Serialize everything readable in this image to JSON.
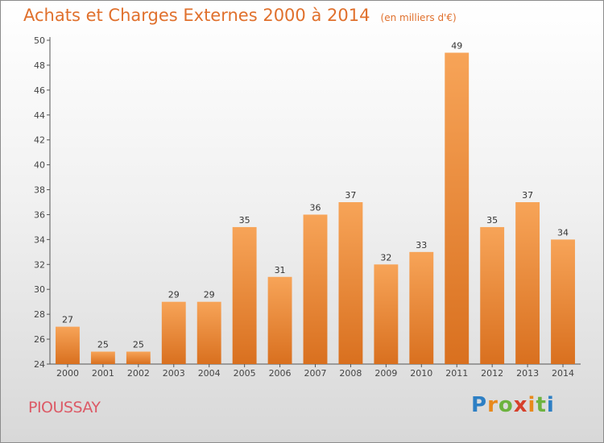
{
  "title": "Achats et Charges Externes 2000 à 2014",
  "subtitle": "(en milliers d'€)",
  "commune": "PIOUSSAY",
  "logo": {
    "letters": [
      "P",
      "r",
      "o",
      "x",
      "i",
      "t",
      "i"
    ],
    "colors": [
      "#2d7fc4",
      "#e8891c",
      "#6db33f",
      "#d6402b",
      "#e8891c",
      "#6db33f",
      "#2d7fc4"
    ]
  },
  "colors": {
    "bar_light": "#f7a458",
    "bar_dark": "#d9701f",
    "title": "#e0702c"
  },
  "chart_data": {
    "type": "bar",
    "categories": [
      "2000",
      "2001",
      "2002",
      "2003",
      "2004",
      "2005",
      "2006",
      "2007",
      "2008",
      "2009",
      "2010",
      "2011",
      "2012",
      "2013",
      "2014"
    ],
    "values": [
      27,
      25,
      25,
      29,
      29,
      35,
      31,
      36,
      37,
      32,
      33,
      49,
      35,
      37,
      34
    ],
    "ylim": [
      24,
      50
    ],
    "yticks": [
      24,
      26,
      28,
      30,
      32,
      34,
      36,
      38,
      40,
      42,
      44,
      46,
      48,
      50
    ],
    "grid": false
  }
}
